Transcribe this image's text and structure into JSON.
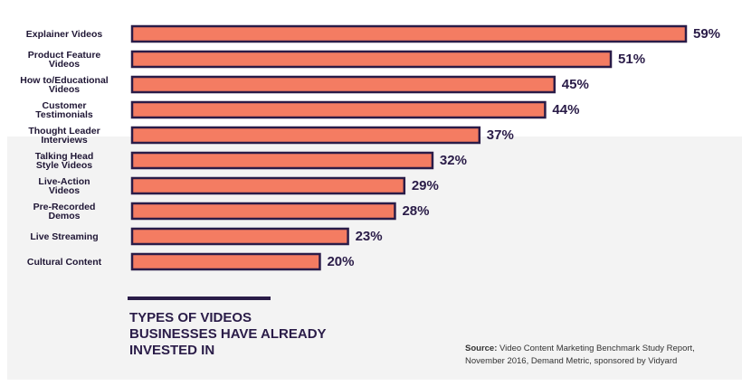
{
  "chart_data": {
    "type": "bar",
    "orientation": "horizontal",
    "title": "TYPES OF VIDEOS BUSINESSES HAVE ALREADY INVESTED IN",
    "categories": [
      "Explainer Videos",
      "Product Feature Videos",
      "How to/Educational Videos",
      "Customer Testimonials",
      "Thought Leader Interviews",
      "Talking Head Style Videos",
      "Live-Action Videos",
      "Pre-Recorded Demos",
      "Live Streaming",
      "Cultural Content"
    ],
    "category_lines": [
      [
        "Explainer Videos"
      ],
      [
        "Product Feature",
        "Videos"
      ],
      [
        "How to/Educational",
        "Videos"
      ],
      [
        "Customer",
        "Testimonials"
      ],
      [
        "Thought Leader",
        "Interviews"
      ],
      [
        "Talking Head",
        "Style Videos"
      ],
      [
        "Live-Action",
        "Videos"
      ],
      [
        "Pre-Recorded",
        "Demos"
      ],
      [
        "Live Streaming"
      ],
      [
        "Cultural Content"
      ]
    ],
    "values": [
      59,
      51,
      45,
      44,
      37,
      32,
      29,
      28,
      23,
      20
    ],
    "value_labels": [
      "59%",
      "51%",
      "45%",
      "44%",
      "37%",
      "32%",
      "29%",
      "28%",
      "23%",
      "20%"
    ],
    "unit": "%",
    "xlim": [
      0,
      59
    ],
    "grid": false,
    "legend": "none",
    "bar_color": "#f47c62",
    "bar_border_color": "#2a1c48"
  },
  "source": {
    "label": "Source:",
    "text": "Video Content Marketing Benchmark Study Report,",
    "text_line2": "November 2016, Demand Metric, sponsored by Vidyard"
  },
  "colors": {
    "text_dark": "#2a1c48",
    "panel_bg": "#f3f3f3"
  }
}
